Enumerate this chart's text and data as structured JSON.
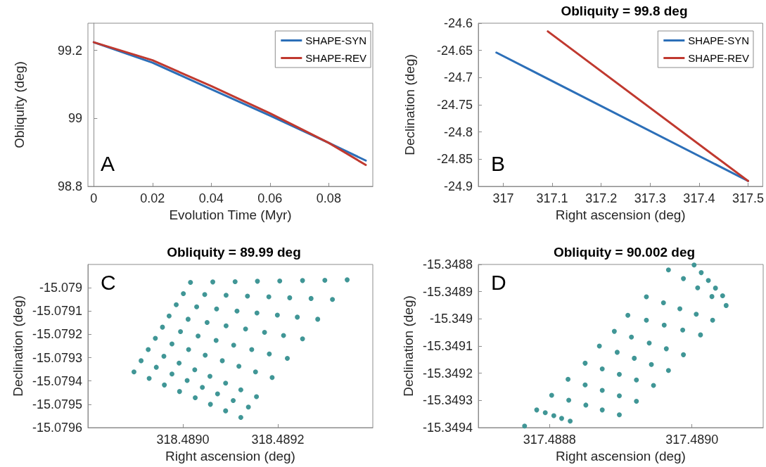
{
  "chart_data": [
    {
      "type": "line",
      "xlabel": "Evolution Time (Myr)",
      "ylabel": "Obliquity (deg)",
      "xlim": [
        -0.002,
        0.095
      ],
      "ylim": [
        98.8,
        99.28
      ],
      "xticks": [
        0,
        0.02,
        0.04,
        0.06,
        0.08
      ],
      "yticks": [
        98.8,
        99,
        99.2
      ],
      "legend": "top right",
      "marker": "none",
      "line_style": "solid",
      "annotations": [
        "A"
      ],
      "series": [
        {
          "name": "SHAPE-SYN",
          "color": "#2c6fb8",
          "x": [
            0,
            0.02,
            0.04,
            0.06,
            0.08,
            0.0926
          ],
          "values": [
            99.224,
            99.164,
            99.086,
            99.008,
            98.928,
            98.876
          ]
        },
        {
          "name": "SHAPE-REV",
          "color": "#c0392f",
          "x": [
            0,
            0.02,
            0.04,
            0.06,
            0.08,
            0.0926
          ],
          "values": [
            99.224,
            99.171,
            99.095,
            99.015,
            98.928,
            98.863
          ]
        }
      ]
    },
    {
      "type": "line",
      "title": "Obliquity = 99.8 deg",
      "xlabel": "Right ascension (deg)",
      "ylabel": "Declination (deg)",
      "xlim": [
        316.949,
        317.53
      ],
      "ylim": [
        -24.9,
        -24.6
      ],
      "xticks": [
        317,
        317.1,
        317.2,
        317.3,
        317.4,
        317.5
      ],
      "yticks": [
        -24.9,
        -24.85,
        -24.8,
        -24.75,
        -24.7,
        -24.65,
        -24.6
      ],
      "legend": "top right",
      "marker": "none",
      "line_style": "solid",
      "annotations": [
        "B"
      ],
      "series": [
        {
          "name": "SHAPE-SYN",
          "color": "#2c6fb8",
          "x": [
            316.986,
            317.5
          ],
          "values": [
            -24.654,
            -24.89
          ]
        },
        {
          "name": "SHAPE-REV",
          "color": "#c0392f",
          "x": [
            317.091,
            317.5
          ],
          "values": [
            -24.615,
            -24.89
          ]
        }
      ]
    },
    {
      "type": "scatter",
      "title": "Obliquity = 89.99 deg",
      "xlabel": "Right ascension (deg)",
      "ylabel": "Declination (deg)",
      "xlim": [
        318.4888,
        318.4894
      ],
      "ylim": [
        -15.0796,
        -15.0789
      ],
      "xticks": [
        {
          "value": 318.489,
          "label": "318.4890"
        },
        {
          "value": 318.4892,
          "label": "318.4892"
        }
      ],
      "yticks": [
        -15.0796,
        -15.0795,
        -15.0794,
        -15.0793,
        -15.0792,
        -15.0791,
        -15.079
      ],
      "marker": "circle",
      "annotations": [
        "C"
      ],
      "series": [
        {
          "color": "#409696",
          "x": [
            318.489016,
            318.489063,
            318.48911,
            318.489157,
            318.489204,
            318.489252,
            318.489299,
            318.489346,
            318.489001,
            318.489046,
            318.489091,
            318.489136,
            318.489181,
            318.489225,
            318.48927,
            318.489315,
            318.488986,
            318.489029,
            318.489071,
            318.489114,
            318.489156,
            318.489199,
            318.489241,
            318.489284,
            318.488971,
            318.489011,
            318.489051,
            318.489091,
            318.489132,
            318.489172,
            318.489212,
            318.489252,
            318.488957,
            318.488995,
            318.489032,
            318.48907,
            318.489107,
            318.489145,
            318.489182,
            318.48922,
            318.488942,
            318.488977,
            318.489012,
            318.489047,
            318.489083,
            318.489118,
            318.489153,
            318.489188,
            318.488927,
            318.48896,
            318.488992,
            318.489025,
            318.489057,
            318.48909,
            318.489122,
            318.489155,
            318.488912,
            318.488944,
            318.488977,
            318.489009,
            318.489041,
            318.489073,
            318.489106,
            318.489138,
            318.488897,
            318.488929,
            318.488961,
            318.488993,
            318.489026,
            318.489058,
            318.48909,
            318.489122
          ],
          "values": [
            -15.078977,
            -15.078975,
            -15.078974,
            -15.078972,
            -15.078971,
            -15.078969,
            -15.078968,
            -15.078966,
            -15.079025,
            -15.079029,
            -15.079032,
            -15.079036,
            -15.079039,
            -15.079043,
            -15.079046,
            -15.07905,
            -15.079073,
            -15.079082,
            -15.079091,
            -15.0791,
            -15.079108,
            -15.079117,
            -15.079126,
            -15.079135,
            -15.079121,
            -15.079135,
            -15.079149,
            -15.079163,
            -15.079177,
            -15.079191,
            -15.079205,
            -15.079219,
            -15.079169,
            -15.079188,
            -15.079207,
            -15.079226,
            -15.079246,
            -15.079265,
            -15.079284,
            -15.079303,
            -15.079217,
            -15.079241,
            -15.079265,
            -15.079289,
            -15.079313,
            -15.079337,
            -15.079361,
            -15.079385,
            -15.079265,
            -15.079294,
            -15.079323,
            -15.079352,
            -15.07938,
            -15.079409,
            -15.079438,
            -15.079467,
            -15.079313,
            -15.079341,
            -15.07937,
            -15.079398,
            -15.079427,
            -15.079455,
            -15.079484,
            -15.079512,
            -15.079361,
            -15.079389,
            -15.079417,
            -15.079445,
            -15.079472,
            -15.0795,
            -15.079528,
            -15.079556
          ]
        }
      ]
    },
    {
      "type": "scatter",
      "title": "Obliquity = 90.002 deg",
      "xlabel": "Right ascension (deg)",
      "ylabel": "Declination (deg)",
      "xlim": [
        317.4887,
        317.4891
      ],
      "ylim": [
        -15.3494,
        -15.3488
      ],
      "xticks": [
        {
          "value": 317.4888,
          "label": "317.4888"
        },
        {
          "value": 317.489,
          "label": "317.4890"
        }
      ],
      "yticks": [
        -15.3494,
        -15.3493,
        -15.3492,
        -15.3491,
        -15.349,
        -15.3489,
        -15.3488
      ],
      "marker": "circle",
      "annotations": [
        "D"
      ],
      "series": [
        {
          "color": "#409696",
          "x": [
            317.488765,
            317.488782,
            317.488794,
            317.488806,
            317.488817,
            317.488829,
            317.488803,
            317.488827,
            317.488851,
            317.488874,
            317.488898,
            317.488826,
            317.48885,
            317.488874,
            317.488898,
            317.488922,
            317.48885,
            317.488874,
            317.488898,
            317.488922,
            317.488946,
            317.48887,
            317.488895,
            317.488919,
            317.488943,
            317.488967,
            317.488891,
            317.488915,
            317.48894,
            317.488964,
            317.488988,
            317.48891,
            317.488936,
            317.488961,
            317.488987,
            317.489012,
            317.488936,
            317.48896,
            317.488983,
            317.489006,
            317.489029,
            317.488967,
            317.488988,
            317.489008,
            317.489028,
            317.489048,
            317.489003,
            317.489013,
            317.489023,
            317.489033,
            317.489043
          ],
          "values": [
            -15.349394,
            -15.349335,
            -15.349345,
            -15.349356,
            -15.349366,
            -15.349376,
            -15.349281,
            -15.349299,
            -15.349317,
            -15.349335,
            -15.349353,
            -15.349222,
            -15.349243,
            -15.349263,
            -15.349283,
            -15.349303,
            -15.349163,
            -15.349184,
            -15.349204,
            -15.349225,
            -15.349245,
            -15.3491,
            -15.349123,
            -15.349145,
            -15.349168,
            -15.34919,
            -15.349046,
            -15.349067,
            -15.349089,
            -15.34911,
            -15.349132,
            -15.348987,
            -15.349005,
            -15.349023,
            -15.349041,
            -15.349059,
            -15.348919,
            -15.348941,
            -15.348963,
            -15.348983,
            -15.349005,
            -15.34882,
            -15.348852,
            -15.348886,
            -15.348918,
            -15.348951,
            -15.348802,
            -15.34883,
            -15.348859,
            -15.348887,
            -15.348915
          ]
        }
      ]
    }
  ]
}
